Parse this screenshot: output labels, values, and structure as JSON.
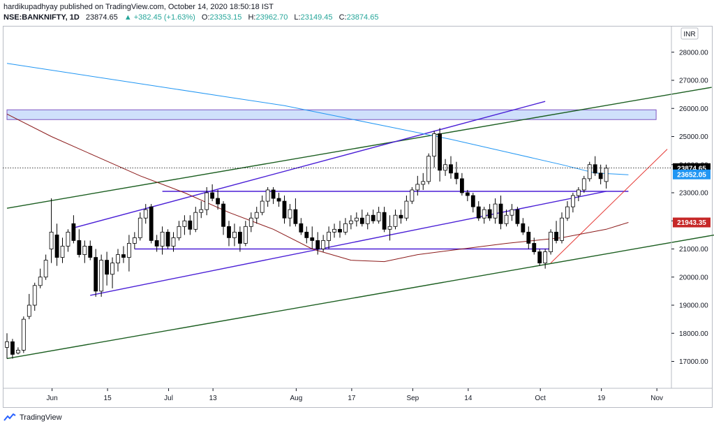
{
  "header": {
    "publish_line": "hardikupadhyay published on TradingView.com, October 14, 2020 18:50:18 IST",
    "symbol": "NSE:BANKNIFTY, 1D",
    "last": "23874.65",
    "change": "▲ +382.45 (+1.63%)",
    "open_label": "O:",
    "open": "23353.15",
    "high_label": "H:",
    "high": "23962.70",
    "low_label": "L:",
    "low": "23149.45",
    "close_label": "C:",
    "close": "23874.65"
  },
  "currency": "INR",
  "footer": {
    "brand": "TradingView"
  },
  "colors": {
    "up_fill": "#ffffff",
    "down_fill": "#000000",
    "candle_border": "#000000",
    "ma_blue": "#2196f3",
    "ma_brown": "#8b1a1a",
    "channel_purple": "#4a1fd6",
    "trend_green": "#1b5e20",
    "trend_red": "#e53935",
    "zone_fill": "#cfe0fb",
    "zone_border": "#7e57c2"
  },
  "chart_data": {
    "type": "candlestick",
    "y_axis_ticks": [
      "28000.00",
      "27000.00",
      "26000.00",
      "25000.00",
      "24000.00",
      "23000.00",
      "22000.00",
      "21000.00",
      "20000.00",
      "19000.00",
      "18000.00",
      "17000.00"
    ],
    "y_ticks_values": [
      28000,
      27000,
      26000,
      25000,
      24000,
      23000,
      22000,
      21000,
      20000,
      19000,
      18000,
      17000
    ],
    "ylim": [
      16100,
      28850
    ],
    "x_axis_ticks": [
      {
        "label": "Jun",
        "i": 8
      },
      {
        "label": "15",
        "i": 18
      },
      {
        "label": "Jul",
        "i": 29
      },
      {
        "label": "13",
        "i": 37
      },
      {
        "label": "Aug",
        "i": 52
      },
      {
        "label": "17",
        "i": 62
      },
      {
        "label": "Sep",
        "i": 73
      },
      {
        "label": "14",
        "i": 83
      },
      {
        "label": "Oct",
        "i": 96
      },
      {
        "label": "19",
        "i": 107
      },
      {
        "label": "Nov",
        "i": 117
      }
    ],
    "price_labels": [
      {
        "text": "23874.65",
        "value": 23874.65,
        "bg": "#000000",
        "fg": "#ffffff"
      },
      {
        "text": "23652.05",
        "value": 23652.05,
        "bg": "#2196f3",
        "fg": "#ffffff"
      },
      {
        "text": "21943.35",
        "value": 21943.35,
        "bg": "#c62828",
        "fg": "#ffffff"
      }
    ],
    "candles": [
      [
        17500,
        18000,
        17100,
        17700
      ],
      [
        17700,
        17800,
        17100,
        17250
      ],
      [
        17300,
        17500,
        17250,
        17400
      ],
      [
        17400,
        18600,
        17300,
        18500
      ],
      [
        18600,
        19400,
        18500,
        19000
      ],
      [
        19000,
        19800,
        18800,
        19700
      ],
      [
        19700,
        20300,
        19600,
        20000
      ],
      [
        20000,
        20800,
        19900,
        20600
      ],
      [
        21000,
        22800,
        20500,
        21600
      ],
      [
        21500,
        21900,
        20400,
        20700
      ],
      [
        20700,
        21400,
        20500,
        21100
      ],
      [
        21100,
        21700,
        20900,
        21600
      ],
      [
        21900,
        22200,
        21200,
        21300
      ],
      [
        21300,
        21700,
        20700,
        20800
      ],
      [
        20800,
        21300,
        20500,
        21100
      ],
      [
        21100,
        21300,
        20600,
        20700
      ],
      [
        20700,
        21000,
        19300,
        19500
      ],
      [
        19500,
        20800,
        19300,
        20600
      ],
      [
        20600,
        20900,
        19700,
        20100
      ],
      [
        20100,
        20700,
        19600,
        20500
      ],
      [
        20500,
        21000,
        20200,
        20800
      ],
      [
        20800,
        21100,
        20500,
        20700
      ],
      [
        20700,
        21500,
        20200,
        21200
      ],
      [
        21200,
        21600,
        21000,
        21400
      ],
      [
        21400,
        22300,
        21300,
        22100
      ],
      [
        22100,
        22600,
        21900,
        22400
      ],
      [
        22500,
        22600,
        21200,
        21300
      ],
      [
        21300,
        21500,
        20900,
        21100
      ],
      [
        21100,
        21800,
        20800,
        21600
      ],
      [
        21600,
        21700,
        21000,
        21100
      ],
      [
        21100,
        21600,
        20900,
        21400
      ],
      [
        21400,
        22000,
        21300,
        21800
      ],
      [
        21800,
        22200,
        21500,
        22000
      ],
      [
        22000,
        22200,
        21500,
        21700
      ],
      [
        21700,
        22500,
        21600,
        22300
      ],
      [
        22300,
        22700,
        22100,
        22400
      ],
      [
        22400,
        23200,
        22200,
        23000
      ],
      [
        23000,
        23300,
        22700,
        22800
      ],
      [
        22800,
        23100,
        22400,
        22600
      ],
      [
        22600,
        22700,
        21500,
        21800
      ],
      [
        21800,
        22000,
        21100,
        21400
      ],
      [
        21400,
        21900,
        21100,
        21600
      ],
      [
        21600,
        21800,
        20900,
        21200
      ],
      [
        21200,
        22000,
        21100,
        21800
      ],
      [
        21800,
        22300,
        21600,
        22100
      ],
      [
        22100,
        22500,
        21900,
        22300
      ],
      [
        22300,
        22900,
        22200,
        22700
      ],
      [
        22700,
        23200,
        22500,
        23100
      ],
      [
        23100,
        23200,
        22600,
        22800
      ],
      [
        22800,
        23000,
        22500,
        22700
      ],
      [
        22700,
        22900,
        21900,
        22100
      ],
      [
        22100,
        22600,
        21800,
        22400
      ],
      [
        22400,
        22800,
        21800,
        21900
      ],
      [
        21900,
        22100,
        21500,
        21600
      ],
      [
        21600,
        21800,
        21200,
        21400
      ],
      [
        21400,
        21800,
        21000,
        21300
      ],
      [
        21300,
        21600,
        20800,
        21000
      ],
      [
        21000,
        21500,
        20900,
        21300
      ],
      [
        21300,
        21800,
        21000,
        21600
      ],
      [
        21600,
        21900,
        21400,
        21700
      ],
      [
        21700,
        22000,
        21400,
        21600
      ],
      [
        21600,
        22100,
        21500,
        21900
      ],
      [
        21900,
        22200,
        21700,
        22000
      ],
      [
        22000,
        22300,
        21800,
        22100
      ],
      [
        22100,
        22400,
        21800,
        21900
      ],
      [
        21900,
        22300,
        21700,
        22200
      ],
      [
        22200,
        22400,
        21900,
        22000
      ],
      [
        22000,
        22500,
        21900,
        22300
      ],
      [
        22300,
        22500,
        21600,
        21700
      ],
      [
        21700,
        22200,
        21300,
        21800
      ],
      [
        21800,
        22400,
        21700,
        22200
      ],
      [
        22200,
        22400,
        21900,
        22100
      ],
      [
        22100,
        22900,
        22000,
        22700
      ],
      [
        22700,
        23200,
        22600,
        23100
      ],
      [
        23100,
        23600,
        22900,
        23300
      ],
      [
        23300,
        23700,
        23100,
        23400
      ],
      [
        23400,
        24400,
        23300,
        24300
      ],
      [
        24300,
        25200,
        23900,
        25100
      ],
      [
        25100,
        25300,
        23400,
        23800
      ],
      [
        23800,
        24200,
        23600,
        24000
      ],
      [
        24000,
        24300,
        23500,
        23700
      ],
      [
        23700,
        24100,
        23300,
        23500
      ],
      [
        23500,
        23700,
        22900,
        23000
      ],
      [
        23000,
        23100,
        22700,
        22900
      ],
      [
        22900,
        23000,
        22300,
        22500
      ],
      [
        22500,
        22700,
        22000,
        22100
      ],
      [
        22100,
        22500,
        21900,
        22400
      ],
      [
        22400,
        22600,
        22000,
        22100
      ],
      [
        22100,
        22800,
        21900,
        22600
      ],
      [
        22600,
        22900,
        21700,
        21900
      ],
      [
        21900,
        22400,
        21800,
        22200
      ],
      [
        22200,
        22600,
        22000,
        22400
      ],
      [
        22400,
        22500,
        21800,
        21900
      ],
      [
        21900,
        22100,
        21500,
        21600
      ],
      [
        21600,
        21800,
        21000,
        21200
      ],
      [
        21200,
        21400,
        20800,
        20900
      ],
      [
        20900,
        21000,
        20400,
        20500
      ],
      [
        20500,
        21000,
        20300,
        20900
      ],
      [
        20900,
        21700,
        20800,
        21600
      ],
      [
        21600,
        22000,
        21200,
        21300
      ],
      [
        21300,
        22300,
        21200,
        22100
      ],
      [
        22100,
        22700,
        22000,
        22500
      ],
      [
        22500,
        23000,
        22300,
        22900
      ],
      [
        22900,
        23200,
        22700,
        23100
      ],
      [
        23100,
        23600,
        23000,
        23500
      ],
      [
        23500,
        24100,
        23400,
        24000
      ],
      [
        24000,
        24300,
        23600,
        23700
      ],
      [
        23700,
        24000,
        23300,
        23500
      ],
      [
        23400,
        24000,
        23150,
        23875
      ]
    ],
    "ma_blue": [
      [
        0,
        27600
      ],
      [
        10,
        27300
      ],
      [
        20,
        27000
      ],
      [
        30,
        26700
      ],
      [
        40,
        26400
      ],
      [
        50,
        26100
      ],
      [
        60,
        25700
      ],
      [
        70,
        25300
      ],
      [
        80,
        24900
      ],
      [
        90,
        24450
      ],
      [
        100,
        24000
      ],
      [
        106,
        23700
      ],
      [
        112,
        23640
      ]
    ],
    "ma_brown": [
      [
        0,
        25800
      ],
      [
        8,
        25000
      ],
      [
        16,
        24300
      ],
      [
        24,
        23600
      ],
      [
        32,
        23000
      ],
      [
        40,
        22300
      ],
      [
        48,
        21700
      ],
      [
        55,
        21000
      ],
      [
        62,
        20600
      ],
      [
        68,
        20550
      ],
      [
        74,
        20800
      ],
      [
        82,
        21000
      ],
      [
        90,
        21200
      ],
      [
        100,
        21400
      ],
      [
        108,
        21700
      ],
      [
        112,
        21943
      ]
    ],
    "zone": [
      [
        0,
        25950
      ],
      [
        117,
        25950
      ],
      [
        117,
        25600
      ],
      [
        0,
        25600
      ]
    ],
    "lines": [
      {
        "name": "lower-green-trendline",
        "color": "trend_green",
        "pts": [
          [
            0,
            17100
          ],
          [
            129,
            21550
          ]
        ],
        "w": 1.4
      },
      {
        "name": "upper-green-trendline",
        "color": "trend_green",
        "pts": [
          [
            0,
            22450
          ],
          [
            127,
            26750
          ]
        ],
        "w": 1.4
      },
      {
        "name": "upper-purple-channel",
        "color": "channel_purple",
        "pts": [
          [
            12,
            21750
          ],
          [
            97,
            26250
          ]
        ],
        "w": 1.4
      },
      {
        "name": "lower-purple-channel",
        "color": "channel_purple",
        "pts": [
          [
            15,
            19350
          ],
          [
            108,
            23050
          ]
        ],
        "w": 1.4
      },
      {
        "name": "resistance-line",
        "color": "channel_purple",
        "pts": [
          [
            28,
            23050
          ],
          [
            112,
            23050
          ]
        ],
        "w": 1.4
      },
      {
        "name": "support-line",
        "color": "channel_purple",
        "pts": [
          [
            23,
            21000
          ],
          [
            98,
            21000
          ]
        ],
        "w": 1.4
      },
      {
        "name": "red-trendline",
        "color": "trend_red",
        "pts": [
          [
            98,
            20500
          ],
          [
            119,
            24550
          ]
        ],
        "w": 1.0
      }
    ]
  }
}
